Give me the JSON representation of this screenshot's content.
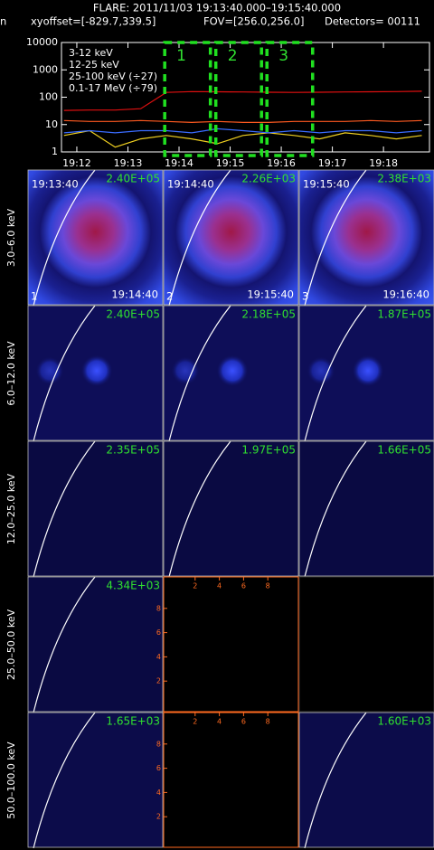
{
  "header": {
    "title": "FLARE: 2011/11/03 19:13:40.000–19:15:40.000",
    "cut": "n",
    "xyoffset": "xyoffset=[-829.7,339.5]",
    "fov": "FOV=[256.0,256.0]",
    "detectors": "Detectors= 00111"
  },
  "chart_data": {
    "type": "line",
    "y_scale": "log",
    "legend": "upper left",
    "x": [
      "19:11:45",
      "19:12:15",
      "19:12:45",
      "19:13:15",
      "19:13:45",
      "19:14:15",
      "19:14:45",
      "19:15:15",
      "19:15:45",
      "19:16:15",
      "19:16:45",
      "19:17:15",
      "19:17:45",
      "19:18:15",
      "19:18:45"
    ],
    "series": [
      {
        "name": "3-12 keV",
        "color": "#e01010",
        "values": [
          33,
          34,
          34,
          38,
          150,
          160,
          158,
          155,
          152,
          150,
          152,
          155,
          158,
          160,
          165
        ]
      },
      {
        "name": "12-25 keV",
        "color": "#ff5a20",
        "values": [
          14,
          13,
          13,
          14,
          13,
          12,
          13,
          12,
          12,
          13,
          13,
          13,
          14,
          13,
          14
        ]
      },
      {
        "name": "25-100 keV (÷27)",
        "color": "#f0d020",
        "values": [
          4,
          6,
          1.5,
          3,
          4,
          3,
          2,
          4,
          5,
          4,
          3,
          5,
          4,
          3,
          4
        ]
      },
      {
        "name": "0.1-17 MeV (÷79)",
        "color": "#3a6cff",
        "values": [
          5,
          6,
          5,
          6,
          6,
          5,
          7,
          6,
          5,
          6,
          5,
          6,
          6,
          5,
          6
        ]
      }
    ],
    "xlim": [
      "19:11:42",
      "19:18:54"
    ],
    "xticks": [
      "19:12",
      "19:13",
      "19:14",
      "19:15",
      "19:16",
      "19:17",
      "19:18"
    ],
    "ylim": [
      1,
      10000
    ],
    "yticks": [
      1,
      10,
      100,
      1000,
      10000
    ]
  },
  "image_grid": {
    "columns": [
      {
        "index": "1",
        "start": "19:13:40",
        "end": "19:14:40"
      },
      {
        "index": "2",
        "start": "19:14:40",
        "end": "19:15:40"
      },
      {
        "index": "3",
        "start": "19:15:40",
        "end": "19:16:40"
      }
    ],
    "rows": [
      {
        "label": "3.0–6.0 keV",
        "maxima": [
          "2.40E+05",
          "2.26E+03",
          "2.38E+03"
        ]
      },
      {
        "label": "6.0–12.0 keV",
        "maxima": [
          "2.40E+05",
          "2.18E+05",
          "1.87E+05"
        ]
      },
      {
        "label": "12.0–25.0 keV",
        "maxima": [
          "2.35E+05",
          "1.97E+05",
          "1.66E+05"
        ]
      },
      {
        "label": "25.0–50.0 keV",
        "maxima": [
          "4.34E+03",
          null,
          null
        ]
      },
      {
        "label": "50.0–100.0 keV",
        "maxima": [
          "1.65E+03",
          null,
          "1.60E+03"
        ]
      }
    ],
    "empty_panel_ticks": [
      2,
      4,
      6,
      8
    ]
  }
}
